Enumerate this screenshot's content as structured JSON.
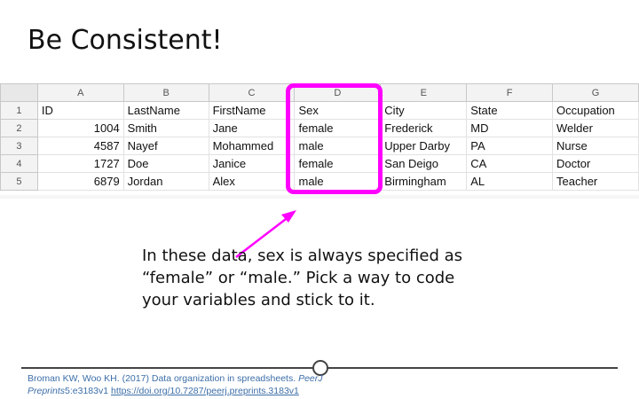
{
  "slide": {
    "title": "Be Consistent!",
    "note": "In these data, sex is always specified as “female” or “male.” Pick a way to code your variables and stick to it."
  },
  "spreadsheet": {
    "columns": [
      "A",
      "B",
      "C",
      "D",
      "E",
      "F",
      "G"
    ],
    "rows": [
      {
        "num": "1",
        "cells": [
          "ID",
          "LastName",
          "FirstName",
          "Sex",
          "City",
          "State",
          "Occupation"
        ]
      },
      {
        "num": "2",
        "cells": [
          "1004",
          "Smith",
          "Jane",
          "female",
          "Frederick",
          "MD",
          "Welder"
        ]
      },
      {
        "num": "3",
        "cells": [
          "4587",
          "Nayef",
          "Mohammed",
          "male",
          "Upper Darby",
          "PA",
          "Nurse"
        ]
      },
      {
        "num": "4",
        "cells": [
          "1727",
          "Doe",
          "Janice",
          "female",
          "San Deigo",
          "CA",
          "Doctor"
        ]
      },
      {
        "num": "5",
        "cells": [
          "6879",
          "Jordan",
          "Alex",
          "male",
          "Birmingham",
          "AL",
          "Teacher"
        ]
      }
    ],
    "highlight_color": "#ff00ff"
  },
  "citation": {
    "line1": "Broman KW, Woo KH. (2017) Data organization in spreadsheets.",
    "journal": "PeerJ",
    "line2a": "Preprints",
    "line2b": "5:e3183v1",
    "link": "https://doi.org/10.7287/peerj.preprints.3183v1"
  }
}
